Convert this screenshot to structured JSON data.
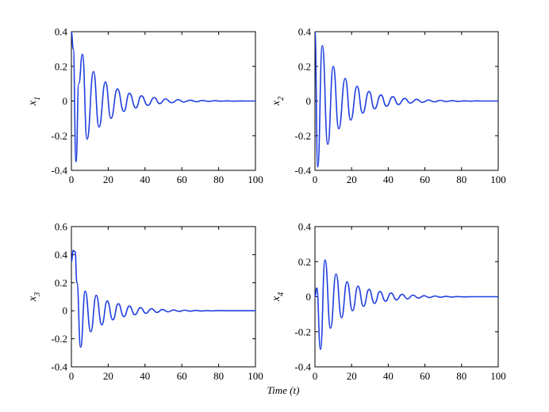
{
  "figure": {
    "xlabel": "Time (t)"
  },
  "chart_data": [
    {
      "type": "line",
      "ylabel": "x",
      "ylabel_sub": "1",
      "xlim": [
        0,
        100
      ],
      "ylim": [
        -0.4,
        0.4
      ],
      "xticks": [
        0,
        20,
        40,
        60,
        80,
        100
      ],
      "yticks": [
        -0.4,
        -0.2,
        0,
        0.2,
        0.4
      ],
      "color": "#1f3fe0",
      "series": [
        {
          "x": [
            0,
            1,
            2.5,
            4,
            6,
            8.5,
            12,
            15,
            18.5,
            21.5,
            25,
            28.5,
            31.5,
            35,
            38,
            41.5,
            45,
            48,
            51,
            54.5,
            58,
            61,
            64.5,
            68,
            71,
            74.5,
            78,
            81,
            84.5,
            88,
            91,
            94.5,
            100
          ],
          "y": [
            0.4,
            0.3,
            -0.35,
            0.1,
            0.27,
            -0.22,
            0.17,
            -0.15,
            0.11,
            -0.1,
            0.07,
            -0.06,
            0.045,
            -0.04,
            0.03,
            -0.025,
            0.02,
            -0.015,
            0.012,
            -0.01,
            0.008,
            -0.006,
            0.005,
            -0.004,
            0.003,
            -0.002,
            0.002,
            -0.001,
            0.001,
            -0.001,
            0.0005,
            0,
            0
          ]
        }
      ]
    },
    {
      "type": "line",
      "ylabel": "x",
      "ylabel_sub": "2",
      "xlim": [
        0,
        100
      ],
      "ylim": [
        -0.4,
        0.4
      ],
      "xticks": [
        0,
        20,
        40,
        60,
        80,
        100
      ],
      "yticks": [
        -0.4,
        -0.2,
        0,
        0.2,
        0.4
      ],
      "color": "#1f3fe0",
      "series": [
        {
          "x": [
            0,
            1.5,
            4,
            7,
            10,
            13,
            16.5,
            19.5,
            23,
            26,
            29.5,
            32.5,
            36,
            39,
            42.5,
            45.5,
            49,
            52,
            55.5,
            58.5,
            62,
            65,
            68.5,
            71.5,
            75,
            78,
            81.5,
            85,
            88,
            91.5,
            100
          ],
          "y": [
            0.4,
            -0.38,
            0.32,
            -0.25,
            0.2,
            -0.16,
            0.13,
            -0.11,
            0.085,
            -0.07,
            0.055,
            -0.045,
            0.035,
            -0.03,
            0.025,
            -0.02,
            0.015,
            -0.012,
            0.01,
            -0.008,
            0.006,
            -0.005,
            0.004,
            -0.003,
            0.002,
            -0.002,
            0.001,
            -0.001,
            0.001,
            0,
            0
          ]
        }
      ]
    },
    {
      "type": "line",
      "ylabel": "x",
      "ylabel_sub": "3",
      "xlim": [
        0,
        100
      ],
      "ylim": [
        -0.4,
        0.6
      ],
      "xticks": [
        0,
        20,
        40,
        60,
        80,
        100
      ],
      "yticks": [
        -0.4,
        -0.2,
        0,
        0.2,
        0.4,
        0.6
      ],
      "color": "#1f3fe0",
      "series": [
        {
          "x": [
            0,
            1,
            2,
            3,
            5,
            7.5,
            10.5,
            13.5,
            16.5,
            19.5,
            22.5,
            25.5,
            28.5,
            31.5,
            34.5,
            37.5,
            40.5,
            43.5,
            46.5,
            49.5,
            52.5,
            55.5,
            58.5,
            61.5,
            64.5,
            67.5,
            70.5,
            73.5,
            76.5,
            80,
            85,
            100
          ],
          "y": [
            0.35,
            0.43,
            0.42,
            0.2,
            -0.26,
            0.14,
            -0.15,
            0.11,
            -0.1,
            0.07,
            -0.065,
            0.05,
            -0.042,
            0.033,
            -0.028,
            0.022,
            -0.018,
            0.014,
            -0.012,
            0.009,
            -0.008,
            0.006,
            -0.005,
            0.004,
            -0.003,
            0.002,
            -0.002,
            0.001,
            -0.001,
            0.001,
            0,
            0
          ]
        }
      ]
    },
    {
      "type": "line",
      "ylabel": "x",
      "ylabel_sub": "4",
      "xlim": [
        0,
        100
      ],
      "ylim": [
        -0.4,
        0.4
      ],
      "xticks": [
        0,
        20,
        40,
        60,
        80,
        100
      ],
      "yticks": [
        -0.4,
        -0.2,
        0,
        0.2,
        0.4
      ],
      "color": "#1f3fe0",
      "series": [
        {
          "x": [
            0,
            1,
            3,
            5.5,
            8.5,
            11.5,
            14.5,
            17.5,
            20.5,
            23.5,
            26.5,
            29.5,
            32.5,
            35.5,
            38.5,
            41.5,
            44.5,
            47.5,
            50.5,
            53.5,
            56.5,
            59.5,
            62.5,
            65.5,
            68.5,
            71.5,
            74.5,
            77.5,
            81,
            86,
            100
          ],
          "y": [
            0,
            0.05,
            -0.3,
            0.21,
            -0.18,
            0.13,
            -0.12,
            0.085,
            -0.08,
            0.06,
            -0.055,
            0.042,
            -0.038,
            0.03,
            -0.026,
            0.021,
            -0.018,
            0.014,
            -0.012,
            0.009,
            -0.008,
            0.006,
            -0.005,
            0.004,
            -0.003,
            0.002,
            -0.002,
            0.001,
            -0.001,
            0,
            0
          ]
        }
      ]
    }
  ]
}
